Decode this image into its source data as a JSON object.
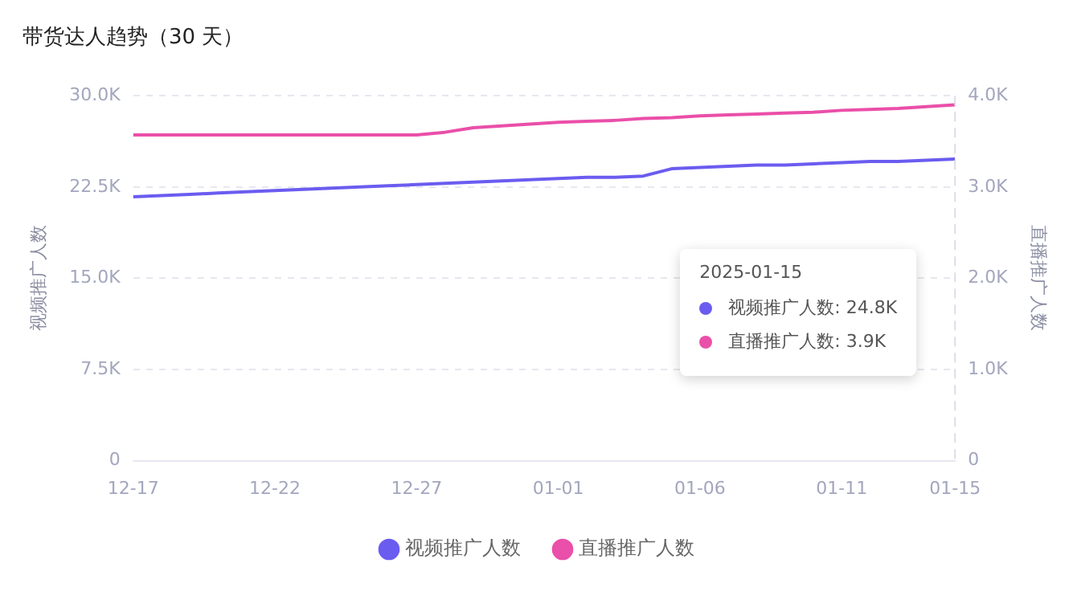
{
  "chart_data": {
    "type": "line",
    "title": "带货达人趋势（30 天）",
    "ylabel": "视频推广人数",
    "y2label": "直播推广人数",
    "categories": [
      "12-17",
      null,
      null,
      null,
      null,
      "12-22",
      null,
      null,
      null,
      null,
      "12-27",
      null,
      null,
      null,
      null,
      "01-01",
      null,
      null,
      null,
      null,
      "01-06",
      null,
      null,
      null,
      null,
      "01-11",
      null,
      null,
      null,
      "01-15"
    ],
    "series": [
      {
        "name": "视频推广人数",
        "color": "#6b5cf0",
        "values": [
          21700,
          21800,
          21900,
          22000,
          22100,
          22200,
          22300,
          22400,
          22500,
          22600,
          22700,
          22800,
          22900,
          23000,
          23100,
          23200,
          23300,
          23300,
          23400,
          24000,
          24100,
          24200,
          24300,
          24300,
          24400,
          24500,
          24600,
          24600,
          24700,
          24800
        ]
      },
      {
        "name": "直播推广人数",
        "color": "#ea4fa9",
        "axis": "y2",
        "values": [
          3570,
          3570,
          3570,
          3570,
          3570,
          3570,
          3570,
          3570,
          3570,
          3570,
          3570,
          3600,
          3650,
          3670,
          3690,
          3710,
          3720,
          3730,
          3750,
          3760,
          3780,
          3790,
          3800,
          3810,
          3820,
          3840,
          3850,
          3860,
          3880,
          3900
        ]
      }
    ],
    "ylim": [
      0,
      30000
    ],
    "yticks": [
      0,
      {
        "value": 7500,
        "label": "7.5K"
      },
      {
        "value": 15000,
        "label": "15.0K"
      },
      {
        "value": 22500,
        "label": "22.5K"
      },
      {
        "value": 30000,
        "label": "30.0K"
      }
    ],
    "y2lim": [
      0,
      4000
    ],
    "y2ticks": [
      0,
      {
        "value": 1000,
        "label": "1.0K"
      },
      {
        "value": 2000,
        "label": "2.0K"
      },
      {
        "value": 3000,
        "label": "3.0K"
      },
      {
        "value": 4000,
        "label": "4.0K"
      }
    ],
    "ref_lines": [
      {
        "axis": "x",
        "value": "01-15",
        "line_style": "dashed",
        "color": "#dcdde6"
      }
    ],
    "annotations": [
      "2025-01-15",
      "视频推广人数: 24.8K",
      "直播推广人数: 3.9K"
    ],
    "grid": "y",
    "legend": "bottom",
    "marker": "none",
    "line_style": "solid"
  }
}
